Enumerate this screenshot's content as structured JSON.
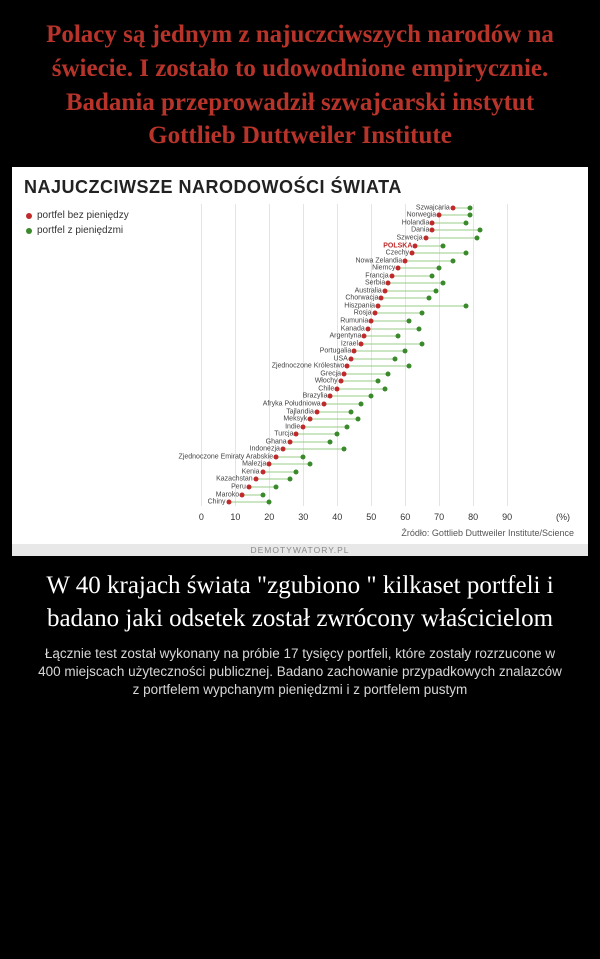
{
  "top_title": "Polacy są jednym z najuczciwszych narodów na świecie. I zostało to udowodnione empirycznie. Badania przeprowadził szwajcarski instytut Gottlieb Duttweiler Institute",
  "chart": {
    "type": "dot-plot",
    "title": "NAJUCZCIWSZE NARODOWOŚCI ŚWIATA",
    "legend": [
      {
        "label": "portfel bez pieniędzy",
        "color": "#c02a2a"
      },
      {
        "label": "portfel z pieniędzmi",
        "color": "#3a8a2c"
      }
    ],
    "x_axis": {
      "min": 0,
      "max": 100,
      "ticks": [
        0,
        10,
        20,
        30,
        40,
        50,
        60,
        70,
        80,
        90
      ],
      "unit_label": "(%)"
    },
    "highlight_country": "POLSKA",
    "colors": {
      "no_money_dot": "#c02a2a",
      "money_dot": "#3a8a2c",
      "connector": "#9acb85",
      "grid": "#e4e4e4",
      "background": "#ffffff"
    },
    "countries": [
      {
        "name": "Szwajcaria",
        "no_money": 74,
        "money": 79
      },
      {
        "name": "Norwegia",
        "no_money": 70,
        "money": 79
      },
      {
        "name": "Holandia",
        "no_money": 68,
        "money": 78
      },
      {
        "name": "Dania",
        "no_money": 68,
        "money": 82
      },
      {
        "name": "Szwecja",
        "no_money": 66,
        "money": 81
      },
      {
        "name": "POLSKA",
        "no_money": 63,
        "money": 71
      },
      {
        "name": "Czechy",
        "no_money": 62,
        "money": 78
      },
      {
        "name": "Nowa Zelandia",
        "no_money": 60,
        "money": 74
      },
      {
        "name": "Niemcy",
        "no_money": 58,
        "money": 70
      },
      {
        "name": "Francja",
        "no_money": 56,
        "money": 68
      },
      {
        "name": "Serbia",
        "no_money": 55,
        "money": 71
      },
      {
        "name": "Australia",
        "no_money": 54,
        "money": 69
      },
      {
        "name": "Chorwacja",
        "no_money": 53,
        "money": 67
      },
      {
        "name": "Hiszpania",
        "no_money": 52,
        "money": 78
      },
      {
        "name": "Rosja",
        "no_money": 51,
        "money": 65
      },
      {
        "name": "Rumunia",
        "no_money": 50,
        "money": 61
      },
      {
        "name": "Kanada",
        "no_money": 49,
        "money": 64
      },
      {
        "name": "Argentyna",
        "no_money": 48,
        "money": 58
      },
      {
        "name": "Izrael",
        "no_money": 47,
        "money": 65
      },
      {
        "name": "Portugalia",
        "no_money": 45,
        "money": 60
      },
      {
        "name": "USA",
        "no_money": 44,
        "money": 57
      },
      {
        "name": "Zjednoczone Królestwo",
        "no_money": 43,
        "money": 61
      },
      {
        "name": "Grecja",
        "no_money": 42,
        "money": 55
      },
      {
        "name": "Włochy",
        "no_money": 41,
        "money": 52
      },
      {
        "name": "Chile",
        "no_money": 40,
        "money": 54
      },
      {
        "name": "Brazylia",
        "no_money": 38,
        "money": 50
      },
      {
        "name": "Afryka Południowa",
        "no_money": 36,
        "money": 47
      },
      {
        "name": "Tajlandia",
        "no_money": 34,
        "money": 44
      },
      {
        "name": "Meksyk",
        "no_money": 32,
        "money": 46
      },
      {
        "name": "Indie",
        "no_money": 30,
        "money": 43
      },
      {
        "name": "Turcja",
        "no_money": 28,
        "money": 40
      },
      {
        "name": "Ghana",
        "no_money": 26,
        "money": 38
      },
      {
        "name": "Indonezja",
        "no_money": 24,
        "money": 42
      },
      {
        "name": "Zjednoczone Emiraty Arabskie",
        "no_money": 22,
        "money": 30
      },
      {
        "name": "Malezja",
        "no_money": 20,
        "money": 32
      },
      {
        "name": "Kenia",
        "no_money": 18,
        "money": 28
      },
      {
        "name": "Kazachstan",
        "no_money": 16,
        "money": 26
      },
      {
        "name": "Peru",
        "no_money": 14,
        "money": 22
      },
      {
        "name": "Maroko",
        "no_money": 12,
        "money": 18
      },
      {
        "name": "Chiny",
        "no_money": 8,
        "money": 20
      }
    ],
    "source": "Źródło: Gottlieb Duttweiler Institute/Science"
  },
  "watermark": "DEMOTYWATORY.PL",
  "mid_title": "W 40 krajach świata \"zgubiono \" kilkaset portfeli i badano jaki odsetek został zwrócony właścicielom",
  "sub_desc": "Łącznie test został wykonany na próbie 17 tysięcy portfeli, które zostały rozrzucone w 400 miejscach użyteczności publicznej. Badano zachowanie przypadkowych znalazców z portfelem wypchanym pieniędzmi i z portfelem pustym"
}
